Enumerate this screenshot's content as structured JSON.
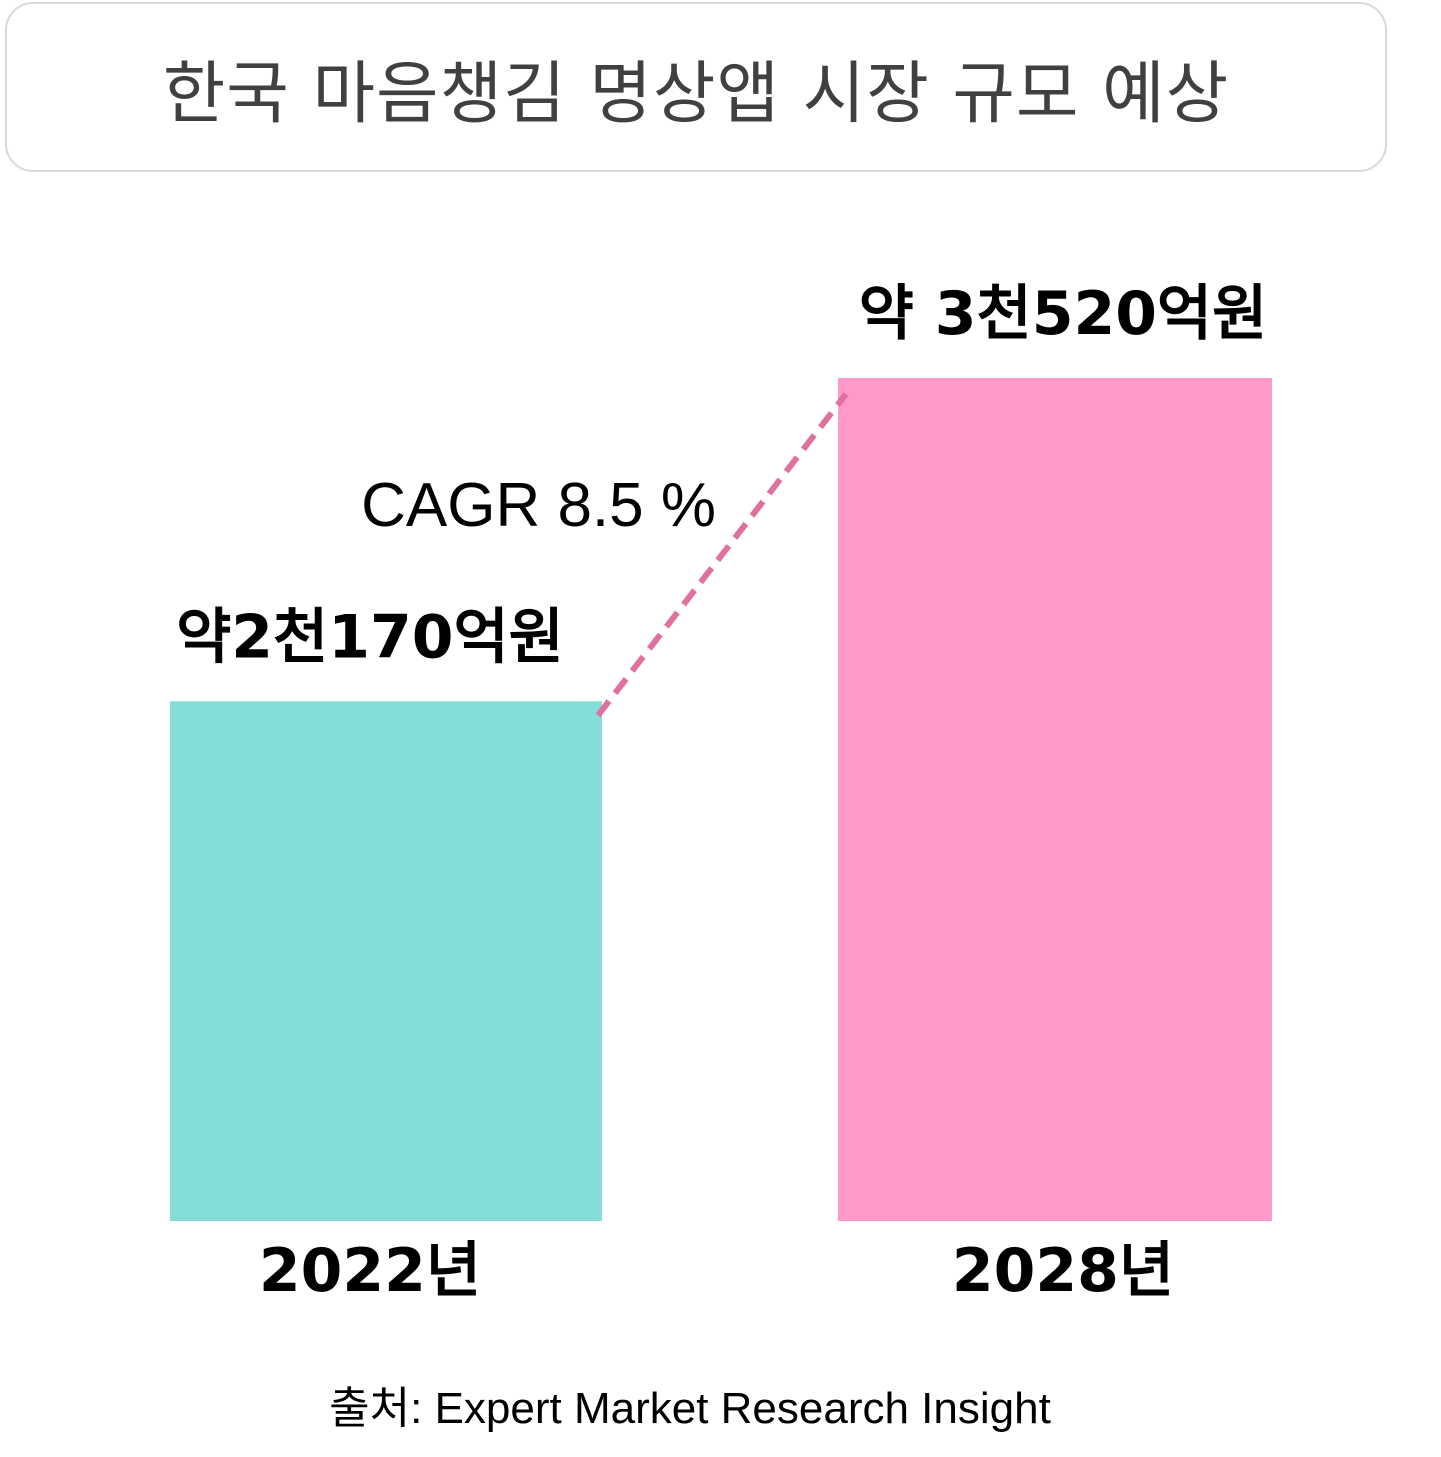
{
  "chart_data": {
    "type": "bar",
    "title": "한국 마음챙김 명상앱 시장 규모 예상",
    "unit": "억원",
    "categories": [
      "2022년",
      "2028년"
    ],
    "values": [
      2170,
      3520
    ],
    "value_labels": [
      "약2천170억원",
      "약 3천520억원"
    ],
    "bar_colors": [
      "#82ded6",
      "#ff99c9"
    ],
    "ylim": [
      0,
      3520
    ],
    "cagr": {
      "label": "CAGR 8.5 %",
      "line_color": "#e0709e",
      "line_style": "dashed"
    },
    "grid": false,
    "legend": "none"
  },
  "source": "출처: Expert Market Research Insight"
}
